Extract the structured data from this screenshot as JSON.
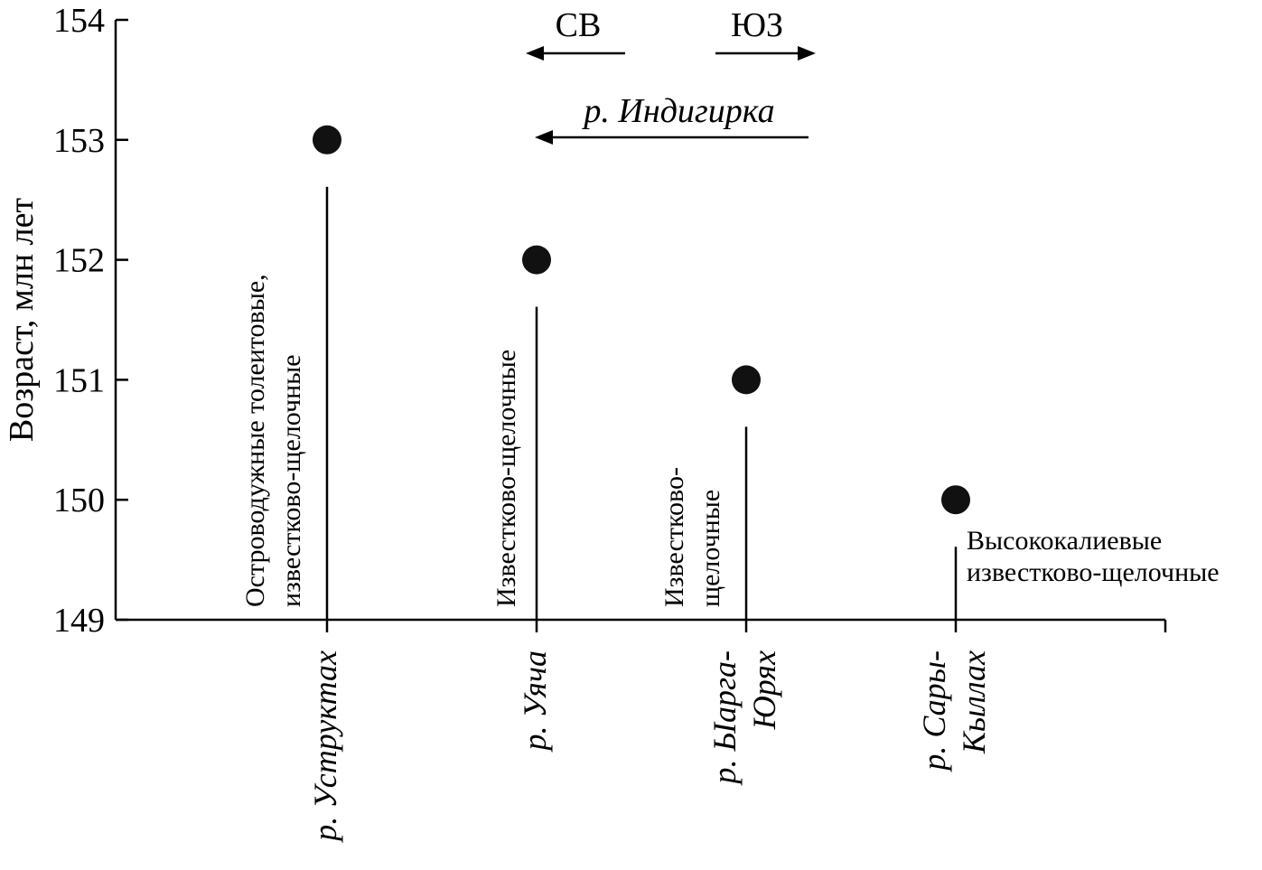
{
  "chart_data": {
    "type": "scatter",
    "ylabel": "Возраст, млн лет",
    "ylim": [
      149,
      154
    ],
    "yticks": [
      "149",
      "150",
      "151",
      "152",
      "153",
      "154"
    ],
    "categories": [
      {
        "lines": [
          "р. Уструктах"
        ],
        "value": 153,
        "annotation": [
          "Островодужные толеитовые,",
          "известково-щелочные"
        ]
      },
      {
        "lines": [
          "р. Уяча"
        ],
        "value": 152,
        "annotation": [
          "Известково-щелочные"
        ]
      },
      {
        "lines": [
          "р. Ыарга-",
          "Юрях"
        ],
        "value": 151,
        "annotation": [
          "Известково-",
          "щелочные"
        ]
      },
      {
        "lines": [
          "р. Сары-",
          "Кыллах"
        ],
        "value": 150,
        "annotation": [
          "Высококалиевые",
          "известково-щелочные"
        ]
      }
    ],
    "direction": {
      "left": "СВ",
      "right": "ЮЗ"
    },
    "river": "р. Индигирка"
  }
}
